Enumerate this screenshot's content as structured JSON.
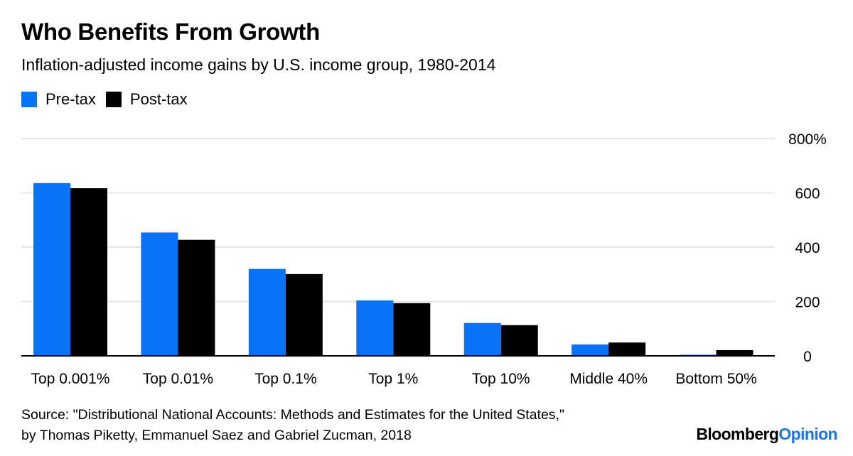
{
  "header": {
    "title": "Who Benefits From Growth",
    "subtitle": "Inflation-adjusted income gains by U.S. income group, 1980-2014"
  },
  "legend": {
    "items": [
      {
        "label": "Pre-tax",
        "color": "#0a72f7"
      },
      {
        "label": "Post-tax",
        "color": "#000000"
      }
    ]
  },
  "chart_data": {
    "type": "bar",
    "title": "Who Benefits From Growth",
    "subtitle": "Inflation-adjusted income gains by U.S. income group, 1980-2014",
    "xlabel": "",
    "ylabel": "",
    "categories": [
      "Top 0.001%",
      "Top 0.01%",
      "Top 0.1%",
      "Top 1%",
      "Top 10%",
      "Middle 40%",
      "Bottom 50%"
    ],
    "series": [
      {
        "name": "Pre-tax",
        "color": "#0a72f7",
        "values": [
          636,
          454,
          320,
          204,
          121,
          42,
          1
        ]
      },
      {
        "name": "Post-tax",
        "color": "#000000",
        "values": [
          617,
          427,
          301,
          194,
          113,
          49,
          21
        ]
      }
    ],
    "ylim": [
      0,
      800
    ],
    "yticks": [
      0,
      200,
      400,
      600,
      800
    ],
    "ytick_labels": [
      "0",
      "200",
      "400",
      "600",
      "800%"
    ],
    "y_axis_position": "right",
    "grid": true,
    "legend_position": "top-left"
  },
  "footer": {
    "source_line1": "Source: \"Distributional National Accounts: Methods and Estimates for the United States,\"",
    "source_line2": "by Thomas Piketty, Emmanuel Saez and Gabriel Zucman, 2018",
    "brand_main": "Bloomberg",
    "brand_accent": "Opinion"
  }
}
